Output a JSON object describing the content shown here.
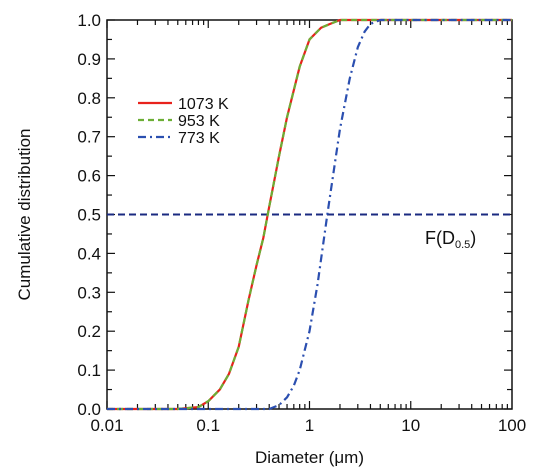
{
  "chart_data": {
    "type": "line",
    "xlabel": "Diameter (μm)",
    "ylabel": "Cumulative distribution",
    "x_scale": "log",
    "xlim": [
      0.01,
      100
    ],
    "ylim": [
      0,
      1.0
    ],
    "x_ticks": [
      0.01,
      0.1,
      1,
      10,
      100
    ],
    "x_tick_labels": [
      "0.01",
      "0.1",
      "1",
      "10",
      "100"
    ],
    "y_ticks": [
      0,
      0.1,
      0.2,
      0.3,
      0.4,
      0.5,
      0.6,
      0.7,
      0.8,
      0.9,
      1.0
    ],
    "y_tick_labels": [
      "0.0",
      "0.1",
      "0.2",
      "0.3",
      "0.4",
      "0.5",
      "0.6",
      "0.7",
      "0.8",
      "0.9",
      "1.0"
    ],
    "grid": false,
    "legend_position": "top-left",
    "series": [
      {
        "name": "1073 K",
        "color": "#e8221c",
        "dash": "solid",
        "x": [
          0.05,
          0.08,
          0.1,
          0.13,
          0.16,
          0.2,
          0.25,
          0.3,
          0.35,
          0.4,
          0.5,
          0.6,
          0.8,
          1.0,
          1.3,
          1.6,
          2.0,
          3.0,
          100
        ],
        "y": [
          0.0,
          0.005,
          0.02,
          0.05,
          0.09,
          0.16,
          0.28,
          0.37,
          0.44,
          0.52,
          0.65,
          0.75,
          0.88,
          0.95,
          0.98,
          0.99,
          1.0,
          1.0,
          1.0
        ]
      },
      {
        "name": "953 K",
        "color": "#6cae35",
        "dash": "dashed",
        "x": [
          0.05,
          0.08,
          0.1,
          0.13,
          0.16,
          0.2,
          0.25,
          0.3,
          0.35,
          0.4,
          0.5,
          0.6,
          0.8,
          1.0,
          1.3,
          1.6,
          2.0,
          3.0,
          100
        ],
        "y": [
          0.0,
          0.005,
          0.02,
          0.05,
          0.09,
          0.16,
          0.28,
          0.37,
          0.44,
          0.52,
          0.65,
          0.75,
          0.88,
          0.95,
          0.98,
          0.99,
          1.0,
          1.0,
          1.0
        ]
      },
      {
        "name": "773 K",
        "color": "#2b4fb0",
        "dash": "dashdot",
        "x": [
          0.4,
          0.5,
          0.6,
          0.7,
          0.8,
          1.0,
          1.2,
          1.5,
          1.8,
          2.0,
          2.5,
          3.0,
          3.5,
          4.0,
          5.0,
          6.0,
          100
        ],
        "y": [
          0.0,
          0.01,
          0.03,
          0.06,
          0.1,
          0.2,
          0.32,
          0.5,
          0.64,
          0.72,
          0.85,
          0.93,
          0.97,
          0.99,
          1.0,
          1.0,
          1.0
        ]
      }
    ],
    "reference_line": {
      "y": 0.5,
      "color": "#1a2a80",
      "dash": "dashed"
    },
    "annotation": {
      "text": "F(D",
      "subscript": "0.5",
      "close": ")"
    }
  }
}
